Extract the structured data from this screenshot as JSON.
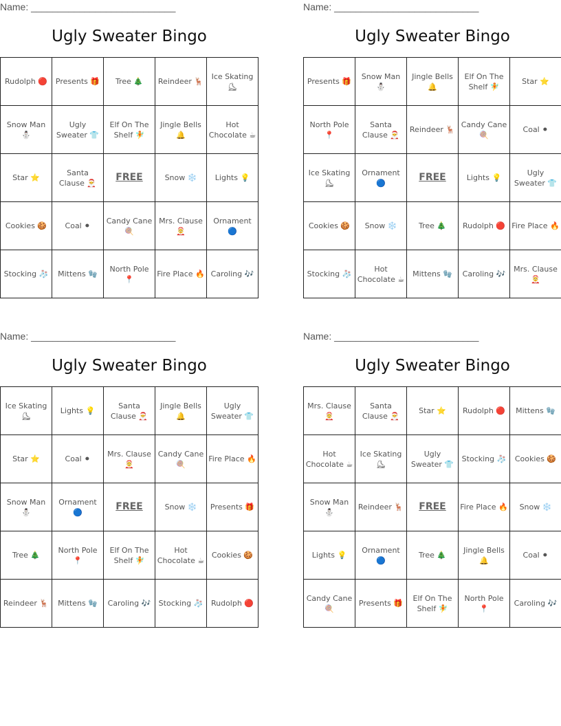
{
  "cards": [
    {
      "name_label": "Name: ___________________________",
      "title": "Ugly Sweater Bingo",
      "rows": [
        [
          "Rudolph 🔴",
          "Presents 🎁",
          "Tree 🎄",
          "Reindeer 🦌",
          "Ice Skating ⛸"
        ],
        [
          "Snow Man ⛄",
          "Ugly Sweater 👕",
          "Elf On The Shelf 🧚",
          "Jingle Bells 🔔",
          "Hot Chocolate ☕"
        ],
        [
          "Star ⭐",
          "Santa Clause 🎅",
          "FREE",
          "Snow ❄️",
          "Lights 💡"
        ],
        [
          "Cookies 🍪",
          "Coal ⚫",
          "Candy Cane 🍭",
          "Mrs. Clause 🤶",
          "Ornament 🔵"
        ],
        [
          "Stocking 🧦",
          "Mittens 🧤",
          "North Pole 📍",
          "Fire Place 🔥",
          "Caroling 🎶"
        ]
      ]
    },
    {
      "name_label": "Name: ___________________________",
      "title": "Ugly Sweater Bingo",
      "rows": [
        [
          "Presents 🎁",
          "Snow Man ⛄",
          "Jingle Bells 🔔",
          "Elf On The Shelf 🧚",
          "Star ⭐"
        ],
        [
          "North Pole 📍",
          "Santa Clause 🎅",
          "Reindeer 🦌",
          "Candy Cane 🍭",
          "Coal ⚫"
        ],
        [
          "Ice Skating ⛸",
          "Ornament 🔵",
          "FREE",
          "Lights 💡",
          "Ugly Sweater 👕"
        ],
        [
          "Cookies 🍪",
          "Snow ❄️",
          "Tree 🎄",
          "Rudolph 🔴",
          "Fire Place 🔥"
        ],
        [
          "Stocking 🧦",
          "Hot Chocolate ☕",
          "Mittens 🧤",
          "Caroling 🎶",
          "Mrs. Clause 🤶"
        ]
      ]
    },
    {
      "name_label": "Name: ___________________________",
      "title": "Ugly Sweater Bingo",
      "rows": [
        [
          "Ice Skating ⛸",
          "Lights 💡",
          "Santa Clause 🎅",
          "Jingle Bells 🔔",
          "Ugly Sweater 👕"
        ],
        [
          "Star ⭐",
          "Coal ⚫",
          "Mrs. Clause 🤶",
          "Candy Cane 🍭",
          "Fire Place 🔥"
        ],
        [
          "Snow Man ⛄",
          "Ornament 🔵",
          "FREE",
          "Snow ❄️",
          "Presents 🎁"
        ],
        [
          "Tree 🎄",
          "North Pole 📍",
          "Elf On The Shelf 🧚",
          "Hot Chocolate ☕",
          "Cookies 🍪"
        ],
        [
          "Reindeer 🦌",
          "Mittens 🧤",
          "Caroling 🎶",
          "Stocking 🧦",
          "Rudolph 🔴"
        ]
      ]
    },
    {
      "name_label": "Name: ___________________________",
      "title": "Ugly Sweater Bingo",
      "rows": [
        [
          "Mrs. Clause 🤶",
          "Santa Clause 🎅",
          "Star ⭐",
          "Rudolph 🔴",
          "Mittens 🧤"
        ],
        [
          "Hot Chocolate ☕",
          "Ice Skating ⛸",
          "Ugly Sweater 👕",
          "Stocking 🧦",
          "Cookies 🍪"
        ],
        [
          "Snow Man ⛄",
          "Reindeer 🦌",
          "FREE",
          "Fire Place 🔥",
          "Snow ❄️"
        ],
        [
          "Lights 💡",
          "Ornament 🔵",
          "Tree 🎄",
          "Jingle Bells 🔔",
          "Coal ⚫"
        ],
        [
          "Candy Cane 🍭",
          "Presents 🎁",
          "Elf On The Shelf 🧚",
          "North Pole 📍",
          "Caroling 🎶"
        ]
      ]
    }
  ]
}
